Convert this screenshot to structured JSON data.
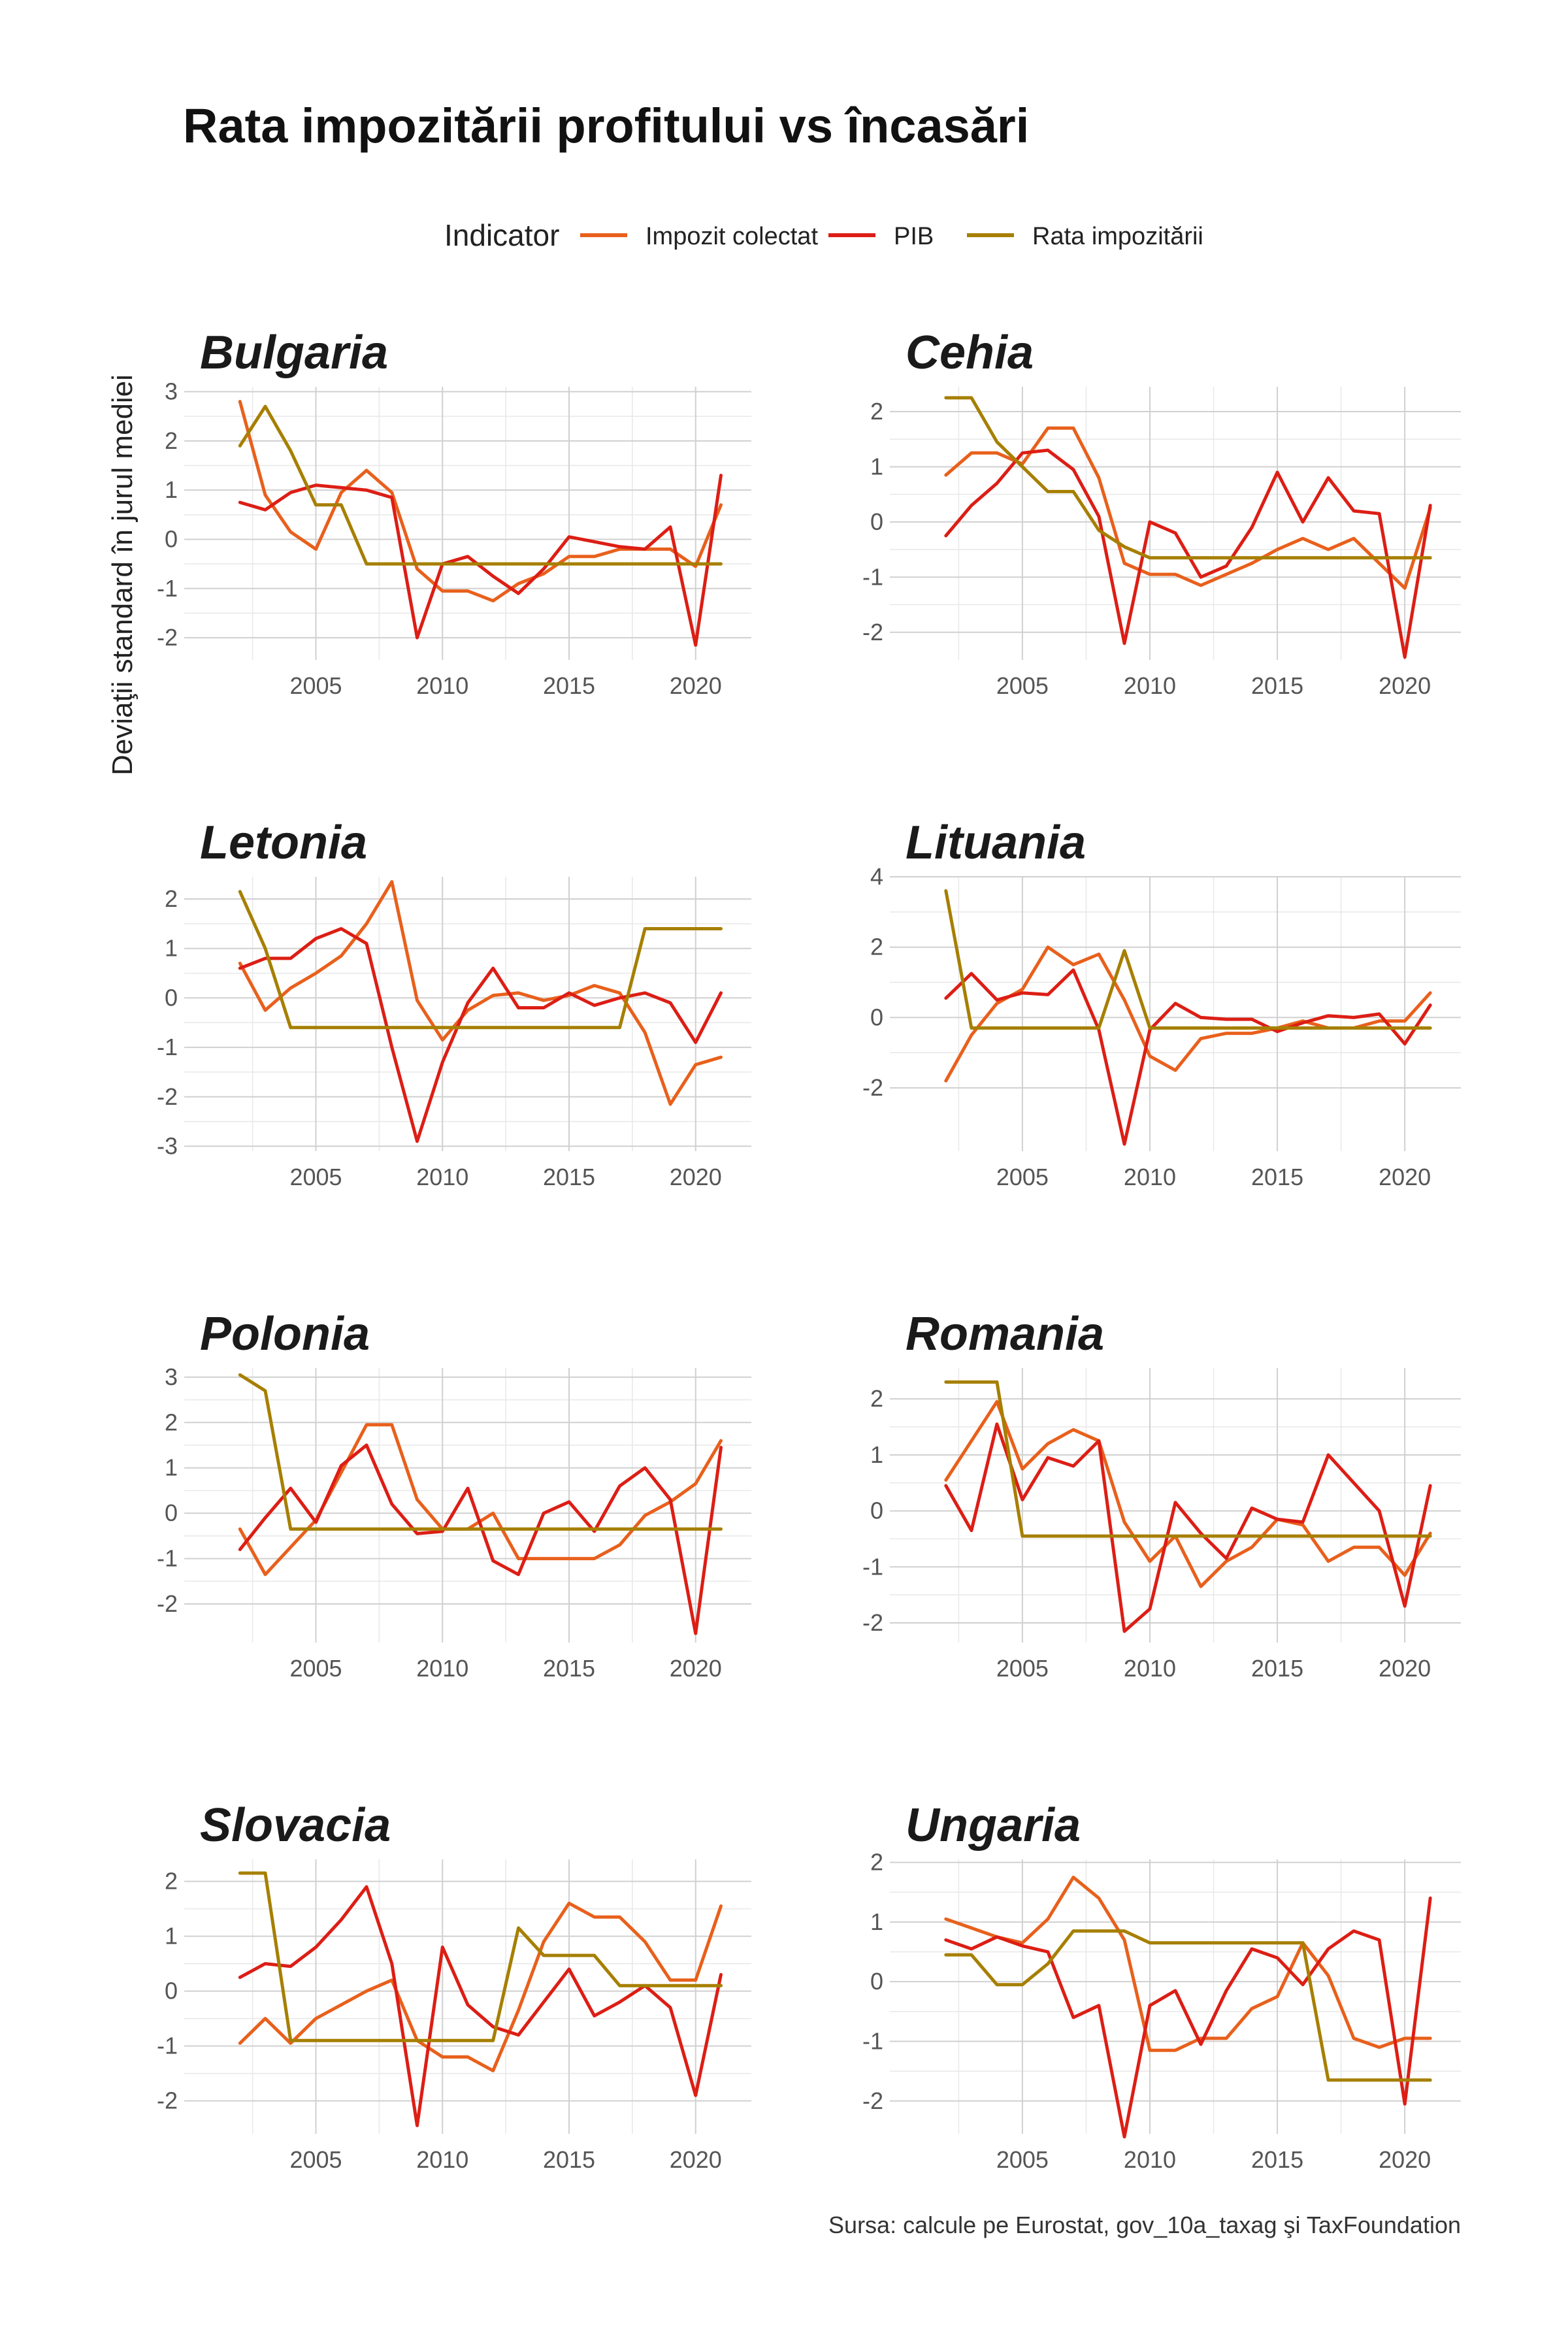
{
  "chart_data": {
    "type": "line",
    "title": "Rata impozitării profitului vs încasări",
    "ylabel": "Deviaţii standard în jurul mediei",
    "caption": "Sursa: calcule pe Eurostat, gov_10a_taxag şi TaxFoundation",
    "legend": {
      "title": "Indicator",
      "position": "top",
      "entries": [
        {
          "name": "Impozit colectat",
          "color": "#e8601c"
        },
        {
          "name": "PIB",
          "color": "#dc1e15"
        },
        {
          "name": "Rata impozitării",
          "color": "#a67f00"
        }
      ]
    },
    "x": [
      2002,
      2003,
      2004,
      2005,
      2006,
      2007,
      2008,
      2009,
      2010,
      2011,
      2012,
      2013,
      2014,
      2015,
      2016,
      2017,
      2018,
      2019,
      2020,
      2021
    ],
    "xlim": [
      1999.8,
      2022.2
    ],
    "xticks": [
      2005,
      2010,
      2015,
      2020
    ],
    "panels": [
      {
        "name": "Bulgaria",
        "ylim": [
          -2.45,
          3.1
        ],
        "yticks": [
          -2,
          -1,
          0,
          1,
          2,
          3
        ],
        "series": [
          {
            "name": "Impozit colectat",
            "values": [
              2.8,
              0.9,
              0.15,
              -0.2,
              0.95,
              1.4,
              0.95,
              -0.6,
              -1.05,
              -1.05,
              -1.25,
              -0.9,
              -0.7,
              -0.35,
              -0.35,
              -0.2,
              -0.2,
              -0.2,
              -0.55,
              0.7
            ]
          },
          {
            "name": "PIB",
            "values": [
              0.75,
              0.6,
              0.95,
              1.1,
              1.05,
              1.0,
              0.85,
              -2.0,
              -0.5,
              -0.35,
              -0.75,
              -1.1,
              -0.6,
              0.05,
              -0.05,
              -0.15,
              -0.2,
              0.25,
              -2.15,
              1.3
            ]
          },
          {
            "name": "Rata impozitării",
            "values": [
              1.9,
              2.7,
              1.8,
              0.7,
              0.7,
              -0.5,
              -0.5,
              -0.5,
              -0.5,
              -0.5,
              -0.5,
              -0.5,
              -0.5,
              -0.5,
              -0.5,
              -0.5,
              -0.5,
              -0.5,
              -0.5,
              -0.5
            ]
          }
        ]
      },
      {
        "name": "Cehia",
        "ylim": [
          -2.5,
          2.45
        ],
        "yticks": [
          -2,
          -1,
          0,
          1,
          2
        ],
        "series": [
          {
            "name": "Impozit colectat",
            "values": [
              0.85,
              1.25,
              1.25,
              1.05,
              1.7,
              1.7,
              0.8,
              -0.75,
              -0.95,
              -0.95,
              -1.15,
              -0.95,
              -0.75,
              -0.5,
              -0.3,
              -0.5,
              -0.3,
              -0.75,
              -1.2,
              0.25
            ]
          },
          {
            "name": "PIB",
            "values": [
              -0.25,
              0.3,
              0.7,
              1.25,
              1.3,
              0.95,
              0.1,
              -2.2,
              0.0,
              -0.2,
              -1.0,
              -0.8,
              -0.1,
              0.9,
              0.0,
              0.8,
              0.2,
              0.15,
              -2.45,
              0.3
            ]
          },
          {
            "name": "Rata impozitării",
            "values": [
              2.25,
              2.25,
              1.45,
              1.0,
              0.55,
              0.55,
              -0.15,
              -0.45,
              -0.65,
              -0.65,
              -0.65,
              -0.65,
              -0.65,
              -0.65,
              -0.65,
              -0.65,
              -0.65,
              -0.65,
              -0.65,
              -0.65
            ]
          }
        ]
      },
      {
        "name": "Letonia",
        "ylim": [
          -3.1,
          2.45
        ],
        "yticks": [
          -3,
          -2,
          -1,
          0,
          1,
          2
        ],
        "series": [
          {
            "name": "Impozit colectat",
            "values": [
              0.7,
              -0.25,
              0.2,
              0.5,
              0.85,
              1.5,
              2.35,
              -0.05,
              -0.85,
              -0.25,
              0.05,
              0.1,
              -0.05,
              0.05,
              0.25,
              0.1,
              -0.7,
              -2.15,
              -1.35,
              -1.2
            ]
          },
          {
            "name": "PIB",
            "values": [
              0.6,
              0.8,
              0.8,
              1.2,
              1.4,
              1.1,
              -1.0,
              -2.9,
              -1.3,
              -0.1,
              0.6,
              -0.2,
              -0.2,
              0.1,
              -0.15,
              0.0,
              0.1,
              -0.1,
              -0.9,
              0.1
            ]
          },
          {
            "name": "Rata impozitării",
            "values": [
              2.15,
              1.0,
              -0.6,
              -0.6,
              -0.6,
              -0.6,
              -0.6,
              -0.6,
              -0.6,
              -0.6,
              -0.6,
              -0.6,
              -0.6,
              -0.6,
              -0.6,
              -0.6,
              1.4,
              1.4,
              1.4,
              1.4
            ]
          }
        ]
      },
      {
        "name": "Lituania",
        "ylim": [
          -3.8,
          4.0
        ],
        "yticks": [
          -2,
          0,
          2,
          4
        ],
        "series": [
          {
            "name": "Impozit colectat",
            "values": [
              -1.8,
              -0.5,
              0.4,
              0.8,
              2.0,
              1.5,
              1.8,
              0.5,
              -1.1,
              -1.5,
              -0.6,
              -0.45,
              -0.45,
              -0.3,
              -0.1,
              -0.3,
              -0.3,
              -0.1,
              -0.1,
              0.7
            ]
          },
          {
            "name": "PIB",
            "values": [
              0.55,
              1.25,
              0.5,
              0.7,
              0.65,
              1.35,
              -0.35,
              -3.6,
              -0.35,
              0.4,
              0.0,
              -0.05,
              -0.05,
              -0.4,
              -0.15,
              0.05,
              0.0,
              0.1,
              -0.75,
              0.35
            ]
          },
          {
            "name": "Rata impozitării",
            "values": [
              3.6,
              -0.3,
              -0.3,
              -0.3,
              -0.3,
              -0.3,
              -0.3,
              1.9,
              -0.3,
              -0.3,
              -0.3,
              -0.3,
              -0.3,
              -0.3,
              -0.3,
              -0.3,
              -0.3,
              -0.3,
              -0.3,
              -0.3
            ]
          }
        ]
      },
      {
        "name": "Polonia",
        "ylim": [
          -2.85,
          3.2
        ],
        "yticks": [
          -2,
          -1,
          0,
          1,
          2,
          3
        ],
        "series": [
          {
            "name": "Impozit colectat",
            "values": [
              -0.35,
              -1.35,
              -0.75,
              -0.15,
              0.9,
              1.95,
              1.95,
              0.3,
              -0.35,
              -0.35,
              0.0,
              -1.0,
              -1.0,
              -1.0,
              -1.0,
              -0.7,
              -0.05,
              0.25,
              0.65,
              1.6
            ]
          },
          {
            "name": "PIB",
            "values": [
              -0.8,
              -0.1,
              0.55,
              -0.2,
              1.05,
              1.5,
              0.2,
              -0.45,
              -0.4,
              0.55,
              -1.05,
              -1.35,
              0.0,
              0.25,
              -0.4,
              0.6,
              1.0,
              0.3,
              -2.65,
              1.45
            ]
          },
          {
            "name": "Rata impozitării",
            "values": [
              3.05,
              2.7,
              -0.35,
              -0.35,
              -0.35,
              -0.35,
              -0.35,
              -0.35,
              -0.35,
              -0.35,
              -0.35,
              -0.35,
              -0.35,
              -0.35,
              -0.35,
              -0.35,
              -0.35,
              -0.35,
              -0.35,
              -0.35
            ]
          }
        ]
      },
      {
        "name": "Romania",
        "ylim": [
          -2.35,
          2.55
        ],
        "yticks": [
          -2,
          -1,
          0,
          1,
          2
        ],
        "series": [
          {
            "name": "Impozit colectat",
            "values": [
              0.55,
              1.25,
              1.95,
              0.75,
              1.2,
              1.45,
              1.25,
              -0.2,
              -0.9,
              -0.45,
              -1.35,
              -0.9,
              -0.65,
              -0.15,
              -0.25,
              -0.9,
              -0.65,
              -0.65,
              -1.15,
              -0.4
            ]
          },
          {
            "name": "PIB",
            "values": [
              0.45,
              -0.35,
              1.55,
              0.2,
              0.95,
              0.8,
              1.25,
              -2.15,
              -1.75,
              0.15,
              -0.4,
              -0.85,
              0.05,
              -0.15,
              -0.2,
              1.0,
              0.5,
              0.0,
              -1.7,
              0.45
            ]
          },
          {
            "name": "Rata impozitării",
            "values": [
              2.3,
              2.3,
              2.3,
              -0.45,
              -0.45,
              -0.45,
              -0.45,
              -0.45,
              -0.45,
              -0.45,
              -0.45,
              -0.45,
              -0.45,
              -0.45,
              -0.45,
              -0.45,
              -0.45,
              -0.45,
              -0.45,
              -0.45
            ]
          }
        ]
      },
      {
        "name": "Slovacia",
        "ylim": [
          -2.6,
          2.4
        ],
        "yticks": [
          -2,
          -1,
          0,
          1,
          2
        ],
        "series": [
          {
            "name": "Impozit colectat",
            "values": [
              -0.95,
              -0.5,
              -0.95,
              -0.5,
              -0.25,
              0.0,
              0.2,
              -0.9,
              -1.2,
              -1.2,
              -1.45,
              -0.35,
              0.9,
              1.6,
              1.35,
              1.35,
              0.9,
              0.2,
              0.2,
              1.55
            ]
          },
          {
            "name": "PIB",
            "values": [
              0.25,
              0.5,
              0.45,
              0.8,
              1.3,
              1.9,
              0.5,
              -2.45,
              0.8,
              -0.25,
              -0.65,
              -0.8,
              -0.2,
              0.4,
              -0.45,
              -0.2,
              0.1,
              -0.3,
              -1.9,
              0.3
            ]
          },
          {
            "name": "Rata impozitării",
            "values": [
              2.15,
              2.15,
              -0.9,
              -0.9,
              -0.9,
              -0.9,
              -0.9,
              -0.9,
              -0.9,
              -0.9,
              -0.9,
              1.15,
              0.65,
              0.65,
              0.65,
              0.1,
              0.1,
              0.1,
              0.1,
              0.1
            ]
          }
        ]
      },
      {
        "name": "Ungaria",
        "ylim": [
          -2.55,
          2.05
        ],
        "yticks": [
          -2,
          -1,
          0,
          1,
          2
        ],
        "series": [
          {
            "name": "Impozit colectat",
            "values": [
              1.05,
              0.9,
              0.75,
              0.65,
              1.05,
              1.75,
              1.4,
              0.7,
              -1.15,
              -1.15,
              -0.95,
              -0.95,
              -0.45,
              -0.25,
              0.65,
              0.1,
              -0.95,
              -1.1,
              -0.95,
              -0.95
            ]
          },
          {
            "name": "PIB",
            "values": [
              0.7,
              0.55,
              0.75,
              0.6,
              0.5,
              -0.6,
              -0.4,
              -2.6,
              -0.4,
              -0.15,
              -1.05,
              -0.15,
              0.55,
              0.4,
              -0.05,
              0.55,
              0.85,
              0.7,
              -2.05,
              1.4
            ]
          },
          {
            "name": "Rata impozitării",
            "values": [
              0.45,
              0.45,
              -0.05,
              -0.05,
              0.3,
              0.85,
              0.85,
              0.85,
              0.65,
              0.65,
              0.65,
              0.65,
              0.65,
              0.65,
              0.65,
              -1.65,
              -1.65,
              -1.65,
              -1.65,
              -1.65
            ]
          }
        ]
      }
    ]
  }
}
